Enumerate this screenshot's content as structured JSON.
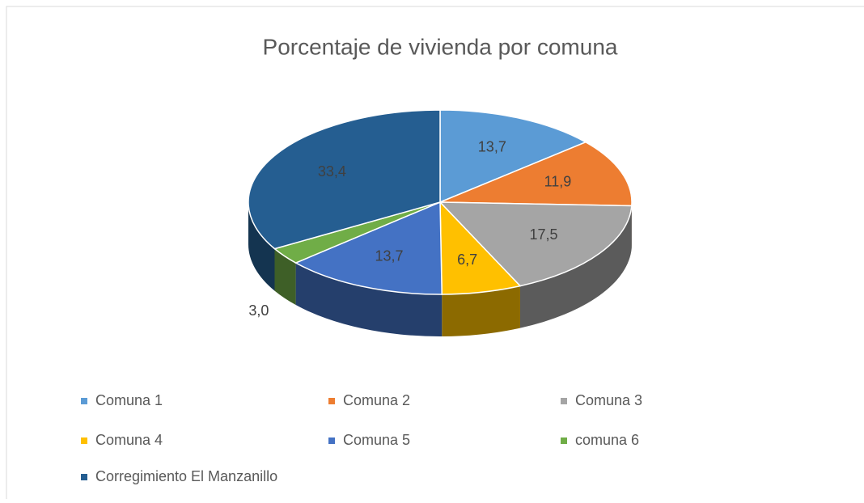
{
  "chart_data": {
    "type": "pie",
    "title": "Porcentaje de vivienda por comuna",
    "categories": [
      "Comuna 1",
      "Comuna 2",
      "Comuna 3",
      "Comuna 4",
      "Comuna 5",
      "comuna 6",
      "Corregimiento El Manzanillo"
    ],
    "values": [
      13.7,
      11.9,
      17.5,
      6.7,
      13.7,
      3.0,
      33.4
    ],
    "value_labels": [
      "13,7",
      "11,9",
      "17,5",
      "6,7",
      "13,7",
      "3,0",
      "33,4"
    ],
    "colors": [
      "#5b9bd5",
      "#ed7d31",
      "#a5a5a5",
      "#ffc000",
      "#4472c4",
      "#70ad47",
      "#255e91"
    ],
    "legend": "bottom"
  }
}
